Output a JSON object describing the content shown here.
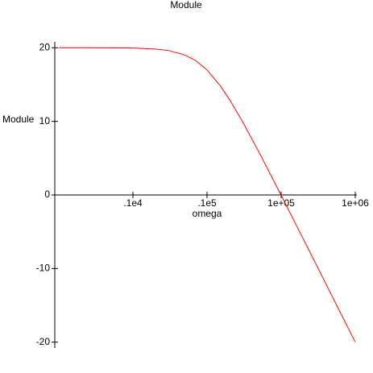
{
  "chart_data": {
    "type": "line",
    "title": "Module",
    "x_label": "omega",
    "y_label": "Module",
    "x_scale": "log",
    "x": [
      100,
      200,
      500,
      1000,
      2000,
      3000,
      5000,
      7000,
      10000,
      15000,
      20000,
      30000,
      50000,
      70000,
      100000,
      200000,
      500000,
      1000000
    ],
    "series": [
      {
        "name": "Module",
        "color": "#ff0000",
        "values": [
          20.0,
          20.0,
          19.99,
          19.96,
          19.83,
          19.63,
          19.03,
          18.27,
          16.99,
          14.88,
          13.01,
          10.0,
          5.85,
          3.01,
          -0.04,
          -6.03,
          -13.98,
          -20.0
        ]
      }
    ],
    "xlim": [
      100,
      1000000
    ],
    "xticks": [
      {
        "value": 1000,
        "label": ".1e4"
      },
      {
        "value": 10000,
        "label": ".1e5"
      },
      {
        "value": 100000,
        "label": "1e+05"
      },
      {
        "value": 1000000,
        "label": "1e+06"
      }
    ],
    "ylim": [
      -20.8,
      20.8
    ],
    "yticks": [
      -20,
      -10,
      0,
      10,
      20
    ]
  }
}
